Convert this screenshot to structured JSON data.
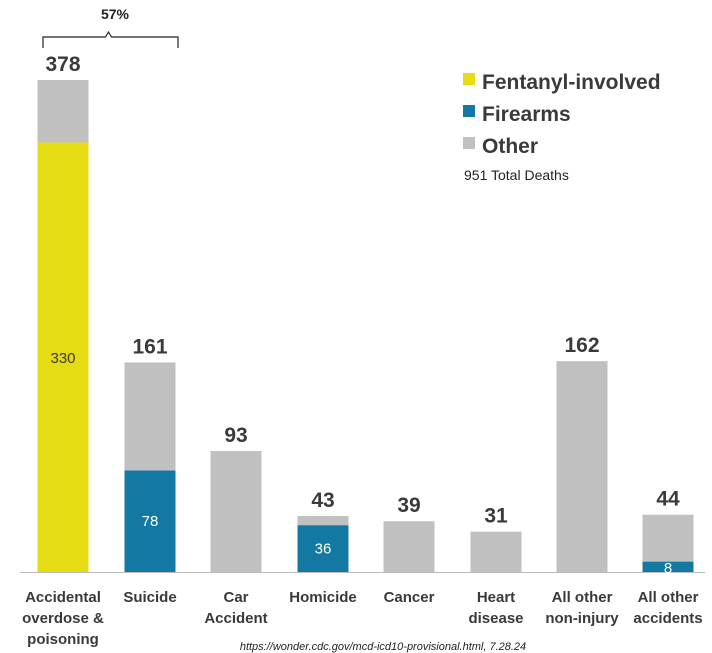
{
  "chart_data": {
    "type": "bar",
    "stacked": true,
    "categories": [
      [
        "Accidental",
        "overdose &",
        "poisoning"
      ],
      [
        "Suicide"
      ],
      [
        "Car",
        "Accident"
      ],
      [
        "Homicide"
      ],
      [
        "Cancer"
      ],
      [
        "Heart",
        "disease"
      ],
      [
        "All other",
        "non-injury"
      ],
      [
        "All other",
        "accidents"
      ]
    ],
    "totals": [
      378,
      161,
      93,
      43,
      39,
      31,
      162,
      44
    ],
    "series": [
      {
        "name": "Fentanyl-involved",
        "color": "#e6dc13",
        "values": [
          330,
          0,
          0,
          0,
          0,
          0,
          0,
          0
        ],
        "labels": [
          "330",
          "",
          "",
          "",
          "",
          "",
          "",
          ""
        ],
        "label_color": "#3a3a3a"
      },
      {
        "name": "Firearms",
        "color": "#1479a2",
        "values": [
          0,
          78,
          0,
          36,
          0,
          0,
          0,
          8
        ],
        "labels": [
          "",
          "78",
          "",
          "36",
          "",
          "",
          "",
          "8"
        ],
        "label_color": "#ffffff"
      },
      {
        "name": "Other",
        "color": "#c0c0c0",
        "values": [
          48,
          83,
          93,
          7,
          39,
          31,
          162,
          36
        ]
      }
    ],
    "ylim": [
      0,
      385
    ],
    "grid": false,
    "legend_position": "top-right",
    "annotation_text": "951 Total Deaths",
    "bracket_label": "57%",
    "source": "https://wonder.cdc.gov/mcd-icd10-provisional.html, 7.28.24"
  }
}
